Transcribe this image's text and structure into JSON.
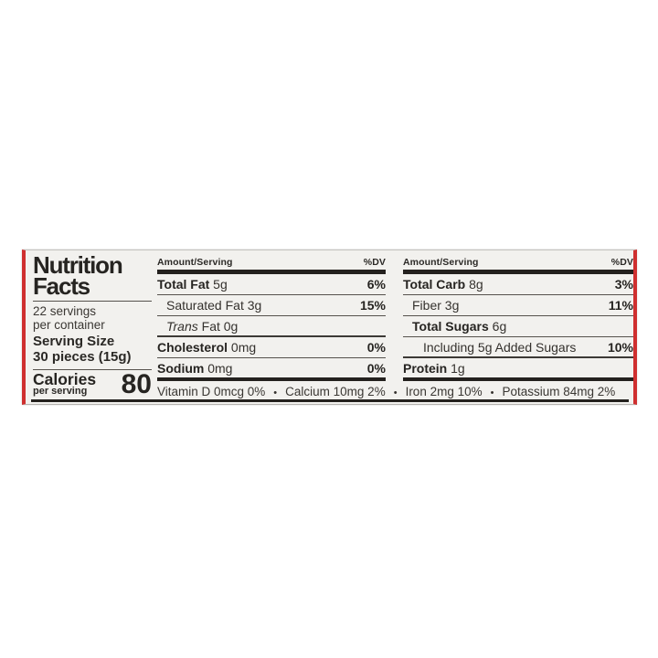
{
  "label": {
    "title_line1": "Nutrition",
    "title_line2": "Facts",
    "servings_line1": "22 servings",
    "servings_line2": "per container",
    "serving_size_label": "Serving Size",
    "serving_size_value": "30 pieces (15g)",
    "calories_label": "Calories",
    "calories_sub": "per serving",
    "calories_value": "80",
    "col_header_amount": "Amount/Serving",
    "col_header_dv": "%DV",
    "columns": {
      "mid": [
        {
          "name": "Total Fat",
          "value": "5g",
          "dv": "6%",
          "indent": 0,
          "style": "bold",
          "sep": "thin"
        },
        {
          "name": "Saturated Fat",
          "value": "3g",
          "dv": "15%",
          "indent": 1,
          "style": "plain",
          "sep": "thin"
        },
        {
          "name": "Trans",
          "value": "Fat 0g",
          "dv": "",
          "indent": 1,
          "style": "italic",
          "sep": "med"
        },
        {
          "name": "Cholesterol",
          "value": "0mg",
          "dv": "0%",
          "indent": 0,
          "style": "bold",
          "sep": "thin"
        },
        {
          "name": "Sodium",
          "value": "0mg",
          "dv": "0%",
          "indent": 0,
          "style": "bold",
          "sep": "thick"
        }
      ],
      "right": [
        {
          "name": "Total Carb",
          "value": "8g",
          "dv": "3%",
          "indent": 0,
          "style": "bold",
          "sep": "thin"
        },
        {
          "name": "Fiber",
          "value": "3g",
          "dv": "11%",
          "indent": 1,
          "style": "plain",
          "sep": "thin"
        },
        {
          "name": "Total Sugars",
          "value": "6g",
          "dv": "",
          "indent": 1,
          "style": "bold",
          "sep": "thin"
        },
        {
          "name": "",
          "value": "Including 5g Added Sugars",
          "dv": "10%",
          "indent": 2,
          "style": "plain",
          "sep": "med"
        },
        {
          "name": "Protein",
          "value": "1g",
          "dv": "",
          "indent": 0,
          "style": "bold",
          "sep": "thick"
        }
      ]
    },
    "vitamins": [
      "Vitamin D 0mcg 0%",
      "Calcium 10mg 2%",
      "Iron 2mg 10%",
      "Potassium 84mg 2%"
    ],
    "colors": {
      "red_stripe": "#cf2f2f",
      "label_bg": "#f2f1ee",
      "text": "#2e2c29",
      "bar": "#24211e"
    }
  }
}
